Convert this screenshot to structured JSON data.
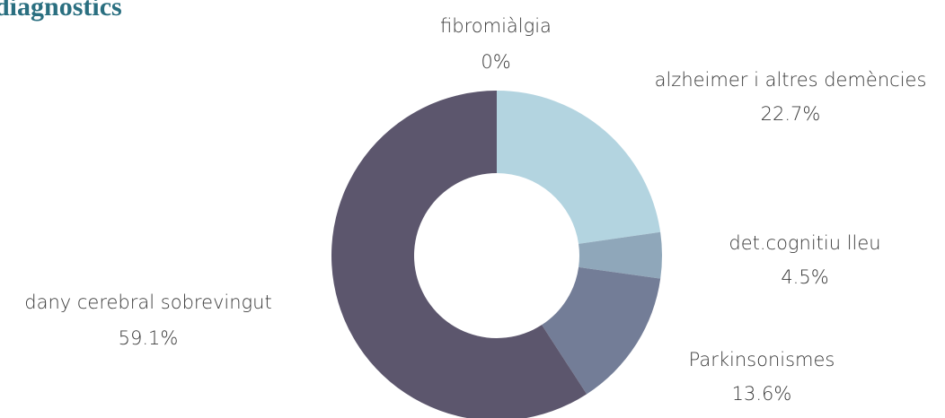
{
  "chart_data": {
    "type": "donut",
    "title": "diagnostics",
    "categories": [
      "fibromiàlgia",
      "alzheimer i altres demències",
      "det.cognitiu lleu",
      "Parkinsonismes",
      "dany cerebral sobrevingut"
    ],
    "values": [
      0,
      22.7,
      4.5,
      13.6,
      59.1
    ],
    "value_labels": [
      "0%",
      "22.7%",
      "4.5%",
      "13.6%",
      "59.1%"
    ],
    "colors": [
      "#c9e3ea",
      "#b3d4e0",
      "#8fa7ba",
      "#737d97",
      "#5c566d"
    ]
  }
}
